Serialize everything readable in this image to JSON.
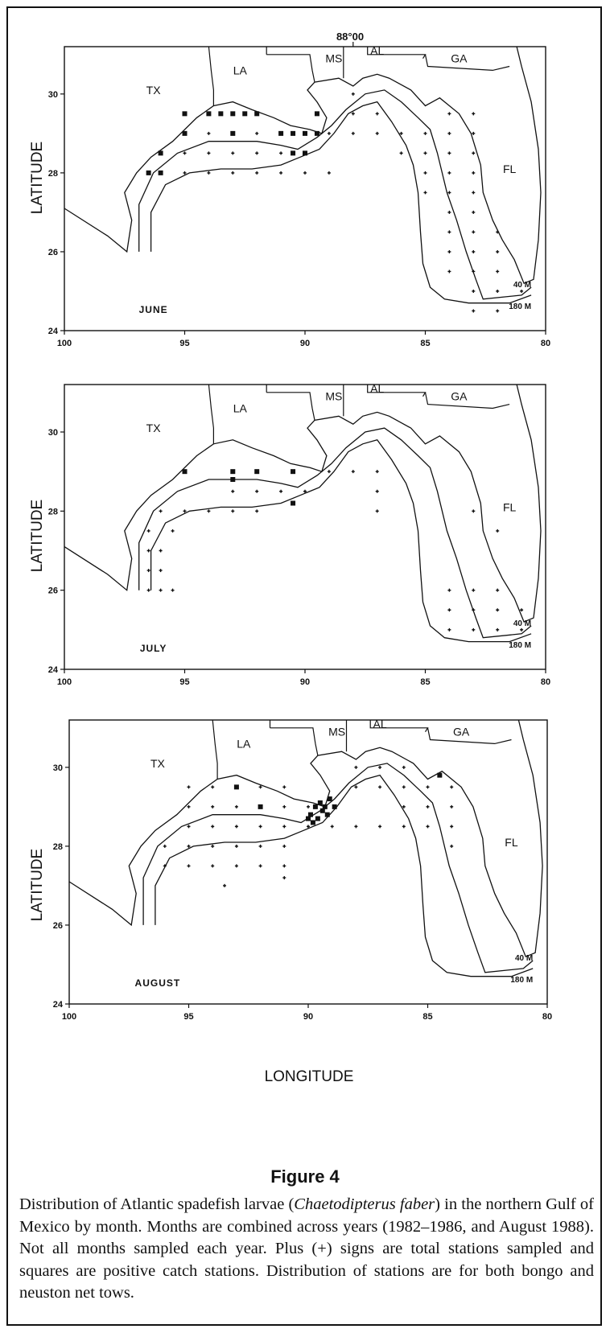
{
  "meridian_label": "88°00",
  "axis": {
    "ylabel": "LATITUDE",
    "xlabel": "LONGITUDE",
    "x_ticks": [
      "100",
      "95",
      "90",
      "85",
      "80"
    ],
    "y_ticks": [
      "30",
      "28",
      "26",
      "24"
    ]
  },
  "states": [
    "TX",
    "LA",
    "MS",
    "AL",
    "GA",
    "FL"
  ],
  "depth_labels": [
    "40 M",
    "180 M"
  ],
  "panels": [
    {
      "month": "JUNE"
    },
    {
      "month": "JULY"
    },
    {
      "month": "AUGUST"
    }
  ],
  "figure": {
    "title": "Figure 4",
    "caption_parts": [
      "Distribution of Atlantic spadefish larvae (",
      "Chaetodipterus faber",
      ") in the northern Gulf of Mexico by month. Months are combined across years (1982–1986, and August 1988). Not all months sampled each year. Plus (+) signs are total stations sampled and squares are positive catch stations. Distribution of stations are for both bongo and neuston net tows."
    ]
  },
  "chart_data": [
    {
      "type": "scatter",
      "title": "JUNE",
      "xlabel": "",
      "ylabel": "LATITUDE",
      "xlim": [
        100,
        80
      ],
      "ylim": [
        24,
        31.2
      ],
      "series": [
        {
          "name": "Plus (+) signs are total stations sampled",
          "points": [
            [
              96,
              28
            ],
            [
              95,
              28
            ],
            [
              94,
              28
            ],
            [
              93,
              28
            ],
            [
              92,
              28
            ],
            [
              91,
              28
            ],
            [
              90,
              28
            ],
            [
              89,
              28
            ],
            [
              95,
              28.5
            ],
            [
              94,
              28.5
            ],
            [
              93,
              28.5
            ],
            [
              92,
              28.5
            ],
            [
              91,
              28.5
            ],
            [
              90,
              28.5
            ],
            [
              95,
              29
            ],
            [
              94,
              29
            ],
            [
              92,
              29
            ],
            [
              91,
              29
            ],
            [
              90,
              29
            ],
            [
              89,
              29
            ],
            [
              88,
              29
            ],
            [
              87,
              29
            ],
            [
              86,
              29
            ],
            [
              85,
              29
            ],
            [
              84,
              29
            ],
            [
              83,
              29
            ],
            [
              88,
              29.5
            ],
            [
              87,
              29.5
            ],
            [
              84,
              29.5
            ],
            [
              83,
              29.5
            ],
            [
              88,
              30
            ],
            [
              86,
              28.5
            ],
            [
              85,
              28.5
            ],
            [
              84,
              28.5
            ],
            [
              83,
              28.5
            ],
            [
              85,
              28
            ],
            [
              84,
              28
            ],
            [
              83,
              28
            ],
            [
              85,
              27.5
            ],
            [
              84,
              27.5
            ],
            [
              83,
              27.5
            ],
            [
              84,
              27
            ],
            [
              83,
              27
            ],
            [
              84,
              26.5
            ],
            [
              83,
              26.5
            ],
            [
              82,
              26.5
            ],
            [
              84,
              26
            ],
            [
              83,
              26
            ],
            [
              82,
              26
            ],
            [
              84,
              25.5
            ],
            [
              83,
              25.5
            ],
            [
              82,
              25.5
            ],
            [
              83,
              25
            ],
            [
              82,
              25
            ],
            [
              81,
              25
            ],
            [
              83,
              24.5
            ],
            [
              82,
              24.5
            ]
          ]
        },
        {
          "name": "squares are positive catch stations",
          "points": [
            [
              95,
              29.5
            ],
            [
              94,
              29.5
            ],
            [
              93.5,
              29.5
            ],
            [
              93,
              29.5
            ],
            [
              92.5,
              29.5
            ],
            [
              92,
              29.5
            ],
            [
              95,
              29
            ],
            [
              93,
              29
            ],
            [
              91,
              29
            ],
            [
              90.5,
              29
            ],
            [
              90,
              29
            ],
            [
              96,
              28.5
            ],
            [
              90.5,
              28.5
            ],
            [
              90,
              28.5
            ],
            [
              96.5,
              28
            ],
            [
              96,
              28
            ],
            [
              89.5,
              29
            ],
            [
              89.5,
              29.5
            ]
          ]
        }
      ]
    },
    {
      "type": "scatter",
      "title": "JULY",
      "xlabel": "",
      "ylabel": "LATITUDE",
      "xlim": [
        100,
        80
      ],
      "ylim": [
        24,
        31.2
      ],
      "series": [
        {
          "name": "Plus (+) signs are total stations sampled",
          "points": [
            [
              96,
              28
            ],
            [
              95,
              28
            ],
            [
              94,
              28
            ],
            [
              93,
              28
            ],
            [
              92,
              28
            ],
            [
              96.5,
              27.5
            ],
            [
              95.5,
              27.5
            ],
            [
              96.5,
              27
            ],
            [
              96,
              27
            ],
            [
              96.5,
              26.5
            ],
            [
              96,
              26.5
            ],
            [
              96.5,
              26
            ],
            [
              96,
              26
            ],
            [
              95.5,
              26
            ],
            [
              93,
              28.5
            ],
            [
              92,
              28.5
            ],
            [
              91,
              28.5
            ],
            [
              90,
              28.5
            ],
            [
              89,
              29
            ],
            [
              88,
              29
            ],
            [
              87,
              29
            ],
            [
              87,
              28.5
            ],
            [
              87,
              28
            ],
            [
              84,
              26
            ],
            [
              83,
              26
            ],
            [
              82,
              26
            ],
            [
              84,
              25.5
            ],
            [
              83,
              25.5
            ],
            [
              82,
              25.5
            ],
            [
              81,
              25.5
            ],
            [
              84,
              25
            ],
            [
              83,
              25
            ],
            [
              82,
              25
            ],
            [
              81,
              25
            ],
            [
              83,
              28
            ],
            [
              82,
              27.5
            ]
          ]
        },
        {
          "name": "squares are positive catch stations",
          "points": [
            [
              93,
              29
            ],
            [
              92,
              29
            ],
            [
              95,
              29
            ],
            [
              90.5,
              29
            ],
            [
              90.5,
              28.2
            ],
            [
              93,
              28.8
            ]
          ]
        }
      ]
    },
    {
      "type": "scatter",
      "title": "AUGUST",
      "xlabel": "LONGITUDE",
      "ylabel": "LATITUDE",
      "xlim": [
        100,
        80
      ],
      "ylim": [
        24,
        31.2
      ],
      "series": [
        {
          "name": "Plus (+) signs are total stations sampled",
          "points": [
            [
              95,
              29.5
            ],
            [
              94,
              29.5
            ],
            [
              93,
              29.5
            ],
            [
              92,
              29.5
            ],
            [
              91,
              29.5
            ],
            [
              95,
              29
            ],
            [
              94,
              29
            ],
            [
              93,
              29
            ],
            [
              92,
              29
            ],
            [
              91,
              29
            ],
            [
              90,
              29
            ],
            [
              95,
              28.5
            ],
            [
              94,
              28.5
            ],
            [
              93,
              28.5
            ],
            [
              92,
              28.5
            ],
            [
              91,
              28.5
            ],
            [
              90,
              28.5
            ],
            [
              96,
              28
            ],
            [
              95,
              28
            ],
            [
              94,
              28
            ],
            [
              93,
              28
            ],
            [
              92,
              28
            ],
            [
              91,
              28
            ],
            [
              96,
              27.5
            ],
            [
              95,
              27.5
            ],
            [
              94,
              27.5
            ],
            [
              93,
              27.5
            ],
            [
              92,
              27.5
            ],
            [
              91,
              27.5
            ],
            [
              93.5,
              27
            ],
            [
              91,
              27.2
            ],
            [
              89,
              28.5
            ],
            [
              88,
              28.5
            ],
            [
              87,
              28.5
            ],
            [
              88,
              29.5
            ],
            [
              87,
              29.5
            ],
            [
              86,
              29.5
            ],
            [
              85,
              29.5
            ],
            [
              84,
              29.5
            ],
            [
              88,
              30
            ],
            [
              87,
              30
            ],
            [
              86,
              30
            ],
            [
              86,
              29
            ],
            [
              85,
              29
            ],
            [
              84,
              29
            ],
            [
              86,
              28.5
            ],
            [
              85,
              28.5
            ],
            [
              84,
              28.5
            ],
            [
              84,
              28
            ]
          ]
        },
        {
          "name": "squares are positive catch stations",
          "points": [
            [
              93,
              29.5
            ],
            [
              92,
              29
            ],
            [
              89.9,
              28.8
            ],
            [
              89.7,
              29
            ],
            [
              89.5,
              29.1
            ],
            [
              89.3,
              29
            ],
            [
              89.1,
              29.2
            ],
            [
              88.9,
              29
            ],
            [
              89.8,
              28.6
            ],
            [
              89.6,
              28.7
            ],
            [
              89.4,
              28.9
            ],
            [
              84.5,
              29.8
            ],
            [
              90,
              28.7
            ],
            [
              89.2,
              28.8
            ]
          ]
        }
      ]
    }
  ]
}
